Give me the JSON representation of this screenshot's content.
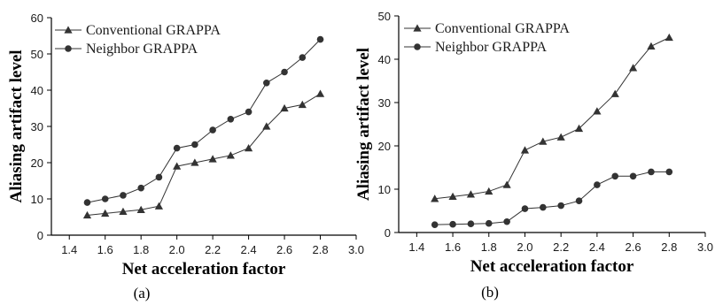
{
  "chart_data": [
    {
      "type": "line",
      "panel_label": "(a)",
      "xlabel": "Net acceleration factor",
      "ylabel": "Aliasing artifact level",
      "xlim": [
        1.3,
        3.0
      ],
      "ylim": [
        0,
        60
      ],
      "xticks": [
        "1.4",
        "1.6",
        "1.8",
        "2.0",
        "2.2",
        "2.4",
        "2.6",
        "2.8",
        "3.0"
      ],
      "yticks": [
        "0",
        "10",
        "20",
        "30",
        "40",
        "50",
        "60"
      ],
      "grid": false,
      "legend_position": "top-left",
      "x": [
        1.5,
        1.6,
        1.7,
        1.8,
        1.9,
        2.0,
        2.1,
        2.2,
        2.3,
        2.4,
        2.5,
        2.6,
        2.7,
        2.8
      ],
      "series": [
        {
          "name": "Conventional GRAPPA",
          "marker": "triangle",
          "values": [
            5.5,
            6,
            6.5,
            7,
            8,
            19,
            20,
            21,
            22,
            24,
            30,
            35,
            36,
            39
          ]
        },
        {
          "name": "Neighbor GRAPPA",
          "marker": "circle",
          "values": [
            9,
            10,
            11,
            13,
            16,
            24,
            25,
            29,
            32,
            34,
            42,
            45,
            49,
            54
          ]
        }
      ]
    },
    {
      "type": "line",
      "panel_label": "(b)",
      "xlabel": "Net acceleration factor",
      "ylabel": "Aliasing artifact level",
      "xlim": [
        1.3,
        3.0
      ],
      "ylim": [
        0,
        50
      ],
      "xticks": [
        "1.4",
        "1.6",
        "1.8",
        "2.0",
        "2.2",
        "2.4",
        "2.6",
        "2.8",
        "3.0"
      ],
      "yticks": [
        "0",
        "10",
        "20",
        "30",
        "40",
        "50"
      ],
      "grid": false,
      "legend_position": "top-left",
      "x": [
        1.5,
        1.6,
        1.7,
        1.8,
        1.9,
        2.0,
        2.1,
        2.2,
        2.3,
        2.4,
        2.5,
        2.6,
        2.7,
        2.8
      ],
      "series": [
        {
          "name": "Conventional GRAPPA",
          "marker": "triangle",
          "values": [
            7.8,
            8.3,
            8.8,
            9.5,
            11,
            19,
            21,
            22,
            24,
            28,
            32,
            38,
            43,
            45
          ]
        },
        {
          "name": "Neighbor GRAPPA",
          "marker": "circle",
          "values": [
            1.8,
            1.9,
            2,
            2.1,
            2.5,
            5.5,
            5.8,
            6.2,
            7.3,
            11,
            13,
            13,
            14,
            14
          ]
        }
      ]
    }
  ],
  "colors": {
    "series_line": "#333333",
    "marker_fill": "#333333",
    "axis": "#000000"
  }
}
